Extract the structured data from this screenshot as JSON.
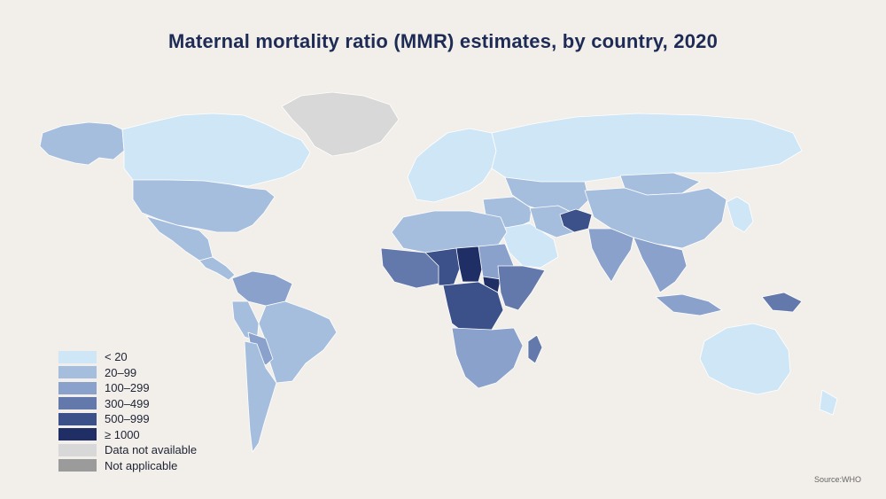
{
  "title": "Maternal mortality ratio (MMR) estimates, by country, 2020",
  "source": "Source:WHO",
  "colors": {
    "background": "#f2efea",
    "title": "#1e2b55",
    "lt20": "#cfe6f6",
    "c20_99": "#a6bedd",
    "c100_299": "#8aa1cc",
    "c300_499": "#6378ab",
    "c500_999": "#3c5189",
    "ge1000": "#1f2f66",
    "data_not_available": "#d8d8d8",
    "not_applicable": "#9b9b9b"
  },
  "legend": [
    {
      "label": "< 20",
      "color": "#cfe6f6"
    },
    {
      "label": "20–99",
      "color": "#a6bedd"
    },
    {
      "label": "100–299",
      "color": "#8aa1cc"
    },
    {
      "label": "300–499",
      "color": "#6378ab"
    },
    {
      "label": "500–999",
      "color": "#3c5189"
    },
    {
      "label": "≥ 1000",
      "color": "#1f2f66"
    },
    {
      "label": "Data not available",
      "color": "#d8d8d8"
    },
    {
      "label": "Not applicable",
      "color": "#9b9b9b"
    }
  ],
  "regions": [
    {
      "name": "alaska",
      "category": "20–99"
    },
    {
      "name": "canada",
      "category": "< 20"
    },
    {
      "name": "greenland",
      "category": "Data not available"
    },
    {
      "name": "usa",
      "category": "20–99"
    },
    {
      "name": "mexico",
      "category": "20–99"
    },
    {
      "name": "central-america",
      "category": "20–99"
    },
    {
      "name": "colombia-venezuela",
      "category": "100–299"
    },
    {
      "name": "brazil",
      "category": "20–99"
    },
    {
      "name": "peru",
      "category": "20–99"
    },
    {
      "name": "bolivia-paraguay",
      "category": "100–299"
    },
    {
      "name": "argentina-chile",
      "category": "20–99"
    },
    {
      "name": "europe",
      "category": "< 20"
    },
    {
      "name": "russia",
      "category": "< 20"
    },
    {
      "name": "kazakhstan-central-asia",
      "category": "20–99"
    },
    {
      "name": "china",
      "category": "20–99"
    },
    {
      "name": "mongolia",
      "category": "20–99"
    },
    {
      "name": "north-africa",
      "category": "20–99"
    },
    {
      "name": "west-africa",
      "category": "300–499"
    },
    {
      "name": "niger-nigeria",
      "category": "500–999"
    },
    {
      "name": "chad",
      "category": "≥ 1000"
    },
    {
      "name": "sudan",
      "category": "100–299"
    },
    {
      "name": "east-africa",
      "category": "300–499"
    },
    {
      "name": "central-africa",
      "category": "500–999"
    },
    {
      "name": "south-sudan",
      "category": "≥ 1000"
    },
    {
      "name": "southern-africa",
      "category": "100–299"
    },
    {
      "name": "madagascar",
      "category": "300–499"
    },
    {
      "name": "middle-east",
      "category": "20–99"
    },
    {
      "name": "arabia",
      "category": "< 20"
    },
    {
      "name": "iran",
      "category": "20–99"
    },
    {
      "name": "afghanistan",
      "category": "500–999"
    },
    {
      "name": "india",
      "category": "100–299"
    },
    {
      "name": "southeast-asia",
      "category": "100–299"
    },
    {
      "name": "indonesia",
      "category": "100–299"
    },
    {
      "name": "png",
      "category": "300–499"
    },
    {
      "name": "japan-korea",
      "category": "< 20"
    },
    {
      "name": "australia",
      "category": "< 20"
    },
    {
      "name": "new-zealand",
      "category": "< 20"
    }
  ]
}
